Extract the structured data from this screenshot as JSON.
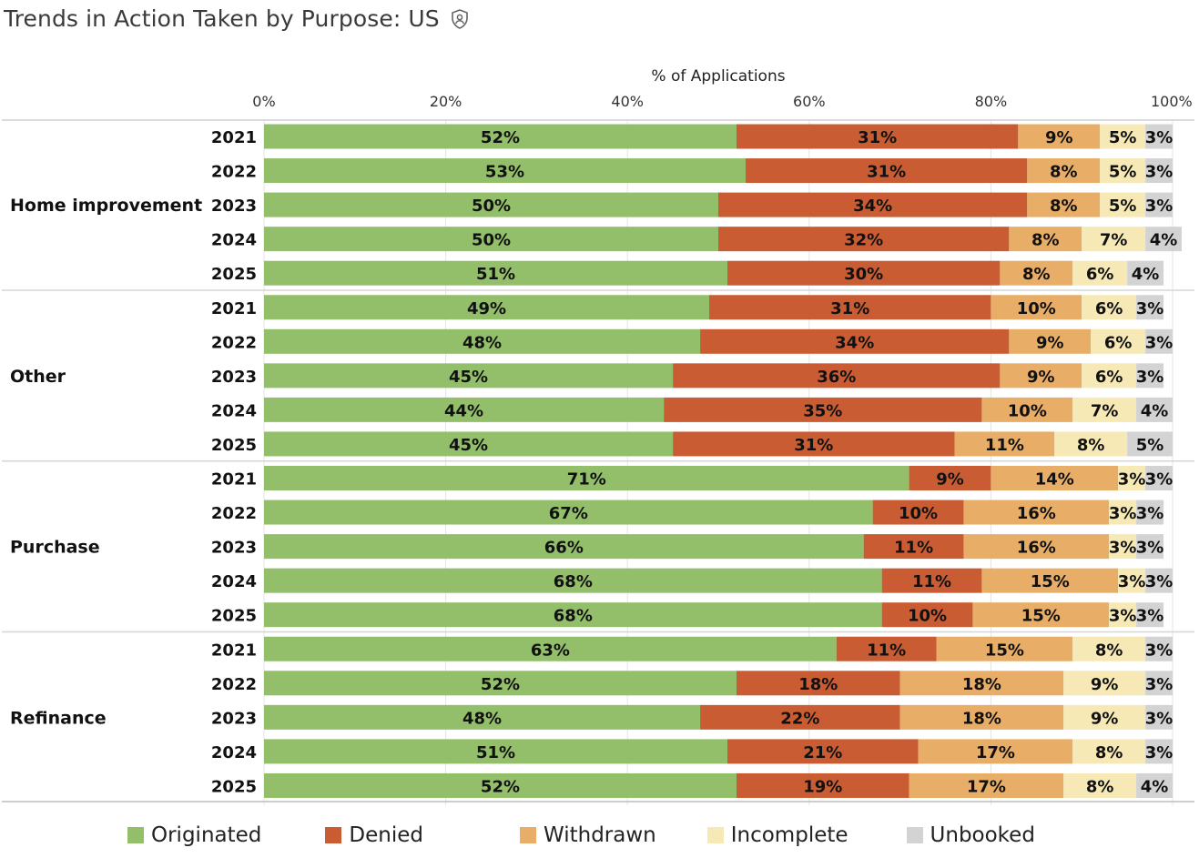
{
  "title": "Trends in Action Taken by Purpose: US",
  "icons": {
    "title_icon": "shield-person-icon"
  },
  "chart_data": {
    "type": "bar",
    "orientation": "horizontal",
    "stacked": "percent",
    "xlabel": "% of Applications",
    "xlim": [
      0,
      100
    ],
    "x_ticks": [
      "0%",
      "20%",
      "40%",
      "60%",
      "80%",
      "100%"
    ],
    "grid": true,
    "legend_position": "bottom",
    "series": [
      {
        "name": "Originated",
        "color": "#93bf6b"
      },
      {
        "name": "Denied",
        "color": "#c95c32"
      },
      {
        "name": "Withdrawn",
        "color": "#e8ad66"
      },
      {
        "name": "Incomplete",
        "color": "#f6e9b6"
      },
      {
        "name": "Unbooked",
        "color": "#d3d3d3"
      }
    ],
    "groups": [
      {
        "name": "Home improvement",
        "rows": [
          {
            "year": "2021",
            "values": [
              52,
              31,
              9,
              5,
              3
            ]
          },
          {
            "year": "2022",
            "values": [
              53,
              31,
              8,
              5,
              3
            ]
          },
          {
            "year": "2023",
            "values": [
              50,
              34,
              8,
              5,
              3
            ]
          },
          {
            "year": "2024",
            "values": [
              50,
              32,
              8,
              7,
              4
            ]
          },
          {
            "year": "2025",
            "values": [
              51,
              30,
              8,
              6,
              4
            ]
          }
        ]
      },
      {
        "name": "Other",
        "rows": [
          {
            "year": "2021",
            "values": [
              49,
              31,
              10,
              6,
              3
            ]
          },
          {
            "year": "2022",
            "values": [
              48,
              34,
              9,
              6,
              3
            ]
          },
          {
            "year": "2023",
            "values": [
              45,
              36,
              9,
              6,
              3
            ]
          },
          {
            "year": "2024",
            "values": [
              44,
              35,
              10,
              7,
              4
            ]
          },
          {
            "year": "2025",
            "values": [
              45,
              31,
              11,
              8,
              5
            ]
          }
        ]
      },
      {
        "name": "Purchase",
        "rows": [
          {
            "year": "2021",
            "values": [
              71,
              9,
              14,
              3,
              3
            ]
          },
          {
            "year": "2022",
            "values": [
              67,
              10,
              16,
              3,
              3
            ]
          },
          {
            "year": "2023",
            "values": [
              66,
              11,
              16,
              3,
              3
            ]
          },
          {
            "year": "2024",
            "values": [
              68,
              11,
              15,
              3,
              3
            ]
          },
          {
            "year": "2025",
            "values": [
              68,
              10,
              15,
              3,
              3
            ]
          }
        ]
      },
      {
        "name": "Refinance",
        "rows": [
          {
            "year": "2021",
            "values": [
              63,
              11,
              15,
              8,
              3
            ]
          },
          {
            "year": "2022",
            "values": [
              52,
              18,
              18,
              9,
              3
            ]
          },
          {
            "year": "2023",
            "values": [
              48,
              22,
              18,
              9,
              3
            ]
          },
          {
            "year": "2024",
            "values": [
              51,
              21,
              17,
              8,
              3
            ]
          },
          {
            "year": "2025",
            "values": [
              52,
              19,
              17,
              8,
              4
            ]
          }
        ]
      }
    ]
  }
}
